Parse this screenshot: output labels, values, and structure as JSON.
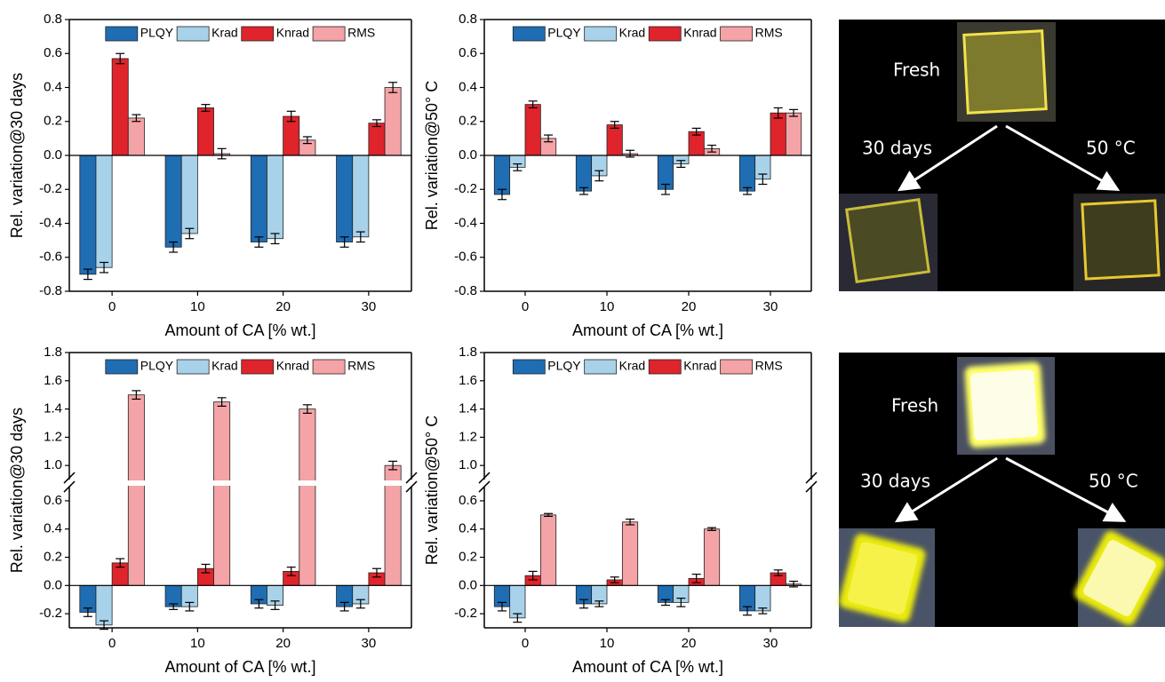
{
  "chart_data": [
    {
      "type": "bar",
      "ylabel": "Rel. variation@30 days",
      "xlabel": "Amount of CA [% wt.]",
      "categories": [
        "0",
        "10",
        "20",
        "30"
      ],
      "legend": "upper center",
      "ylim": [
        -0.8,
        0.8
      ],
      "yticks": [
        -0.8,
        -0.6,
        -0.4,
        -0.2,
        {
          "value": 0,
          "label": "0.0"
        },
        0.2,
        0.4,
        0.6,
        0.8
      ],
      "series": [
        {
          "name": "PLQY",
          "color": "#1f6db3",
          "values": [
            -0.7,
            -0.54,
            -0.51,
            -0.51
          ],
          "errors": [
            0.03,
            0.03,
            0.03,
            0.03
          ]
        },
        {
          "name": "Krad",
          "color": "#a8d2ea",
          "values": [
            -0.66,
            -0.46,
            -0.49,
            -0.48
          ],
          "errors": [
            0.03,
            0.03,
            0.03,
            0.03
          ]
        },
        {
          "name": "Knrad",
          "color": "#e0242b",
          "values": [
            0.57,
            0.28,
            0.23,
            0.19
          ],
          "errors": [
            0.03,
            0.02,
            0.03,
            0.02
          ]
        },
        {
          "name": "RMS",
          "color": "#f4a3a6",
          "values": [
            0.22,
            0.01,
            0.09,
            0.4
          ],
          "errors": [
            0.02,
            0.03,
            0.02,
            0.03
          ]
        }
      ]
    },
    {
      "type": "bar",
      "ylabel": "Rel. variation@50° C",
      "xlabel": "Amount of CA [% wt.]",
      "categories": [
        "0",
        "10",
        "20",
        "30"
      ],
      "legend": "upper center",
      "ylim": [
        -0.8,
        0.8
      ],
      "yticks": [
        -0.8,
        -0.6,
        -0.4,
        -0.2,
        {
          "value": 0,
          "label": "0.0"
        },
        0.2,
        0.4,
        0.6,
        0.8
      ],
      "series": [
        {
          "name": "PLQY",
          "color": "#1f6db3",
          "values": [
            -0.23,
            -0.21,
            -0.2,
            -0.21
          ],
          "errors": [
            0.03,
            0.02,
            0.03,
            0.02
          ]
        },
        {
          "name": "Krad",
          "color": "#a8d2ea",
          "values": [
            -0.07,
            -0.12,
            -0.05,
            -0.14
          ],
          "errors": [
            0.02,
            0.03,
            0.02,
            0.03
          ]
        },
        {
          "name": "Knrad",
          "color": "#e0242b",
          "values": [
            0.3,
            0.18,
            0.14,
            0.25
          ],
          "errors": [
            0.02,
            0.02,
            0.02,
            0.03
          ]
        },
        {
          "name": "RMS",
          "color": "#f4a3a6",
          "values": [
            0.1,
            0.01,
            0.04,
            0.25
          ],
          "errors": [
            0.02,
            0.02,
            0.02,
            0.02
          ]
        }
      ]
    },
    {
      "type": "bar",
      "ylabel": "Rel. variation@30 days",
      "xlabel": "Amount of CA [% wt.]",
      "categories": [
        "0",
        "10",
        "20",
        "30"
      ],
      "legend": "upper center",
      "ylim": [
        -0.3,
        1.8
      ],
      "ybreak": [
        0.7,
        0.9
      ],
      "yticks": [
        -0.2,
        {
          "value": 0,
          "label": "0.0"
        },
        0.2,
        0.4,
        0.6,
        {
          "value": 1,
          "label": "1.0"
        },
        1.2,
        1.4,
        1.6,
        1.8
      ],
      "series": [
        {
          "name": "PLQY",
          "color": "#1f6db3",
          "values": [
            -0.19,
            -0.15,
            -0.13,
            -0.15
          ],
          "errors": [
            0.03,
            0.02,
            0.03,
            0.03
          ]
        },
        {
          "name": "Krad",
          "color": "#a8d2ea",
          "values": [
            -0.28,
            -0.15,
            -0.14,
            -0.13
          ],
          "errors": [
            0.03,
            0.03,
            0.03,
            0.03
          ]
        },
        {
          "name": "Knrad",
          "color": "#e0242b",
          "values": [
            0.16,
            0.12,
            0.1,
            0.09
          ],
          "errors": [
            0.03,
            0.03,
            0.03,
            0.03
          ]
        },
        {
          "name": "RMS",
          "color": "#f4a3a6",
          "values": [
            1.5,
            1.45,
            1.4,
            1.0
          ],
          "errors": [
            0.03,
            0.03,
            0.03,
            0.03
          ]
        }
      ]
    },
    {
      "type": "bar",
      "ylabel": "Rel. variation@50° C",
      "xlabel": "Amount of CA [% wt.]",
      "categories": [
        "0",
        "10",
        "20",
        "30"
      ],
      "legend": "upper center",
      "ylim": [
        -0.3,
        1.8
      ],
      "ybreak": [
        0.7,
        0.9
      ],
      "yticks": [
        -0.2,
        {
          "value": 0,
          "label": "0.0"
        },
        0.2,
        0.4,
        0.6,
        {
          "value": 1,
          "label": "1.0"
        },
        1.2,
        1.4,
        1.6,
        1.8
      ],
      "series": [
        {
          "name": "PLQY",
          "color": "#1f6db3",
          "values": [
            -0.15,
            -0.13,
            -0.12,
            -0.18
          ],
          "errors": [
            0.03,
            0.03,
            0.02,
            0.03
          ]
        },
        {
          "name": "Krad",
          "color": "#a8d2ea",
          "values": [
            -0.23,
            -0.13,
            -0.12,
            -0.18
          ],
          "errors": [
            0.03,
            0.02,
            0.03,
            0.02
          ]
        },
        {
          "name": "Knrad",
          "color": "#e0242b",
          "values": [
            0.07,
            0.04,
            0.05,
            0.09
          ],
          "errors": [
            0.03,
            0.02,
            0.03,
            0.02
          ]
        },
        {
          "name": "RMS",
          "color": "#f4a3a6",
          "values": [
            0.5,
            0.45,
            0.4,
            0.01
          ],
          "errors": [
            0.01,
            0.02,
            0.01,
            0.02
          ]
        }
      ]
    }
  ],
  "photos": [
    {
      "fresh": "Fresh",
      "aged": "30 days",
      "heated": "50 °C"
    },
    {
      "fresh": "Fresh",
      "aged": "30 days",
      "heated": "50 °C"
    }
  ]
}
